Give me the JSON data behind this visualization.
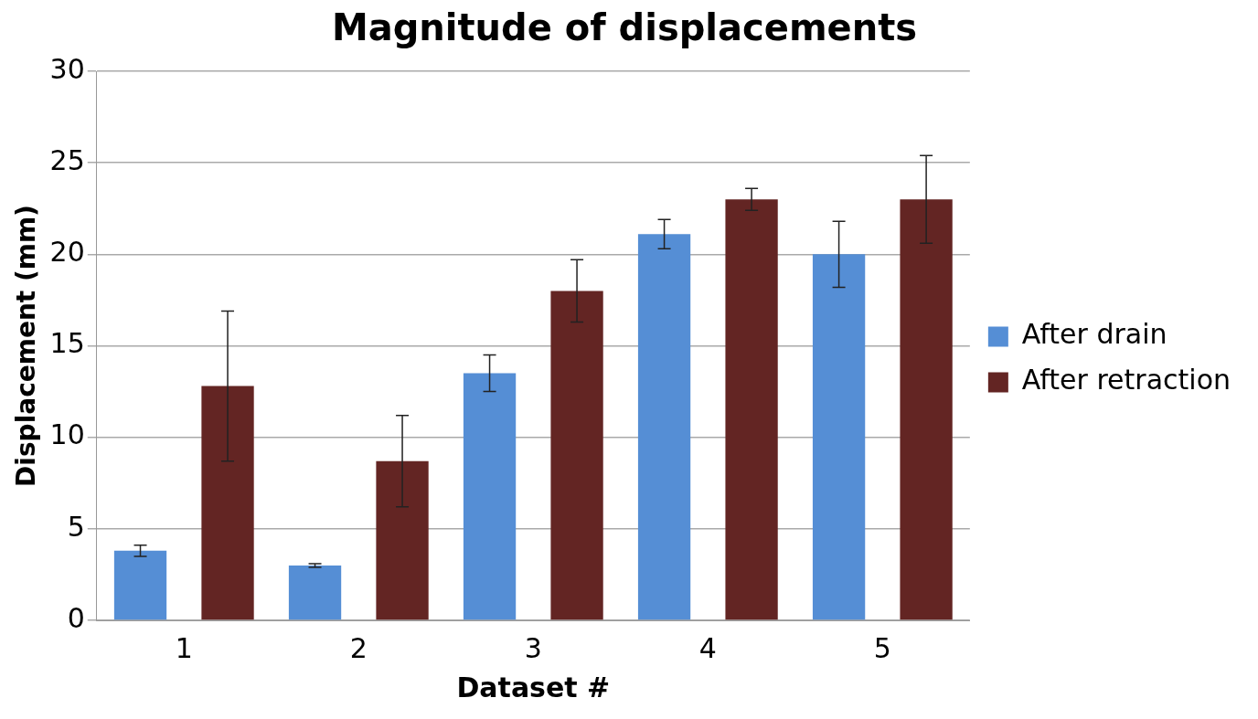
{
  "chart_data": {
    "type": "bar",
    "title": "Magnitude of displacements",
    "xlabel": "Dataset #",
    "ylabel": "Displacement (mm)",
    "categories": [
      "1",
      "2",
      "3",
      "4",
      "5"
    ],
    "series": [
      {
        "name": "After drain",
        "color": "#558ed5",
        "values": [
          3.8,
          3.0,
          13.5,
          21.1,
          20.0
        ],
        "errors": [
          0.3,
          0.1,
          1.0,
          0.8,
          1.8
        ]
      },
      {
        "name": "After retraction",
        "color": "#632523",
        "values": [
          12.8,
          8.7,
          18.0,
          23.0,
          23.0
        ],
        "errors": [
          4.1,
          2.5,
          1.7,
          0.6,
          2.4
        ]
      }
    ],
    "ylim": [
      0,
      30
    ],
    "yticks": [
      0,
      5,
      10,
      15,
      20,
      25,
      30
    ],
    "grid": "y",
    "legend": "right"
  }
}
